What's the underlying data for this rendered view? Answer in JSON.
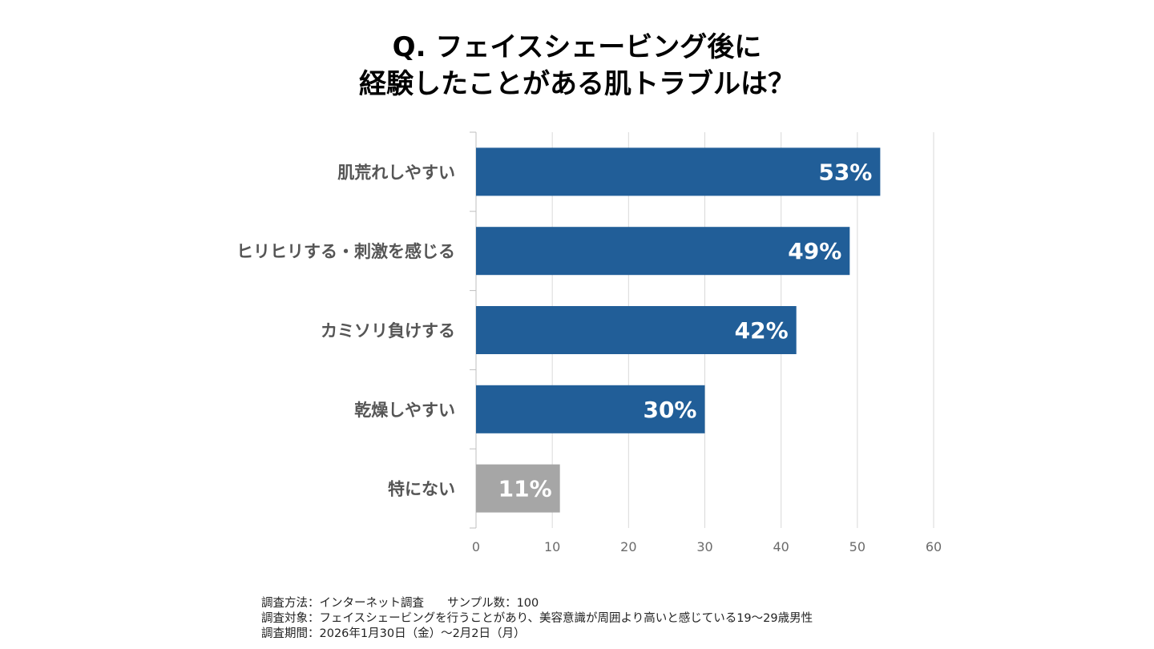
{
  "title": {
    "line1": "Q. フェイスシェービング後に",
    "line2": "経験したことがある肌トラブルは？"
  },
  "chart_data": {
    "type": "bar",
    "orientation": "horizontal",
    "categories": [
      "肌荒れしやすい",
      "ヒリヒリする・刺激を感じる",
      "カミソリ負けする",
      "乾燥しやすい",
      "特にない"
    ],
    "values": [
      53,
      49,
      42,
      30,
      11
    ],
    "value_labels": [
      "53%",
      "49%",
      "42%",
      "30%",
      "11%"
    ],
    "bar_colors": [
      "#215e98",
      "#215e98",
      "#215e98",
      "#215e98",
      "#a6a6a6"
    ],
    "xlim": [
      0,
      60
    ],
    "xticks": [
      0,
      10,
      20,
      30,
      40,
      50,
      60
    ],
    "xtick_labels": [
      "0",
      "10",
      "20",
      "30",
      "40",
      "50",
      "60"
    ],
    "grid": true,
    "gridline_color": "#d9d9d9",
    "axis_color": "#bfbfbf",
    "xlabel": "",
    "ylabel": ""
  },
  "footnote": {
    "line1": "調査方法：インターネット調査　　サンプル数：100",
    "line2": "調査対象：フェイスシェービングを行うことがあり、美容意識が周囲より高いと感じている19〜29歳男性",
    "line3": "調査期間：2026年1月30日（金）〜2月2日（月）"
  }
}
